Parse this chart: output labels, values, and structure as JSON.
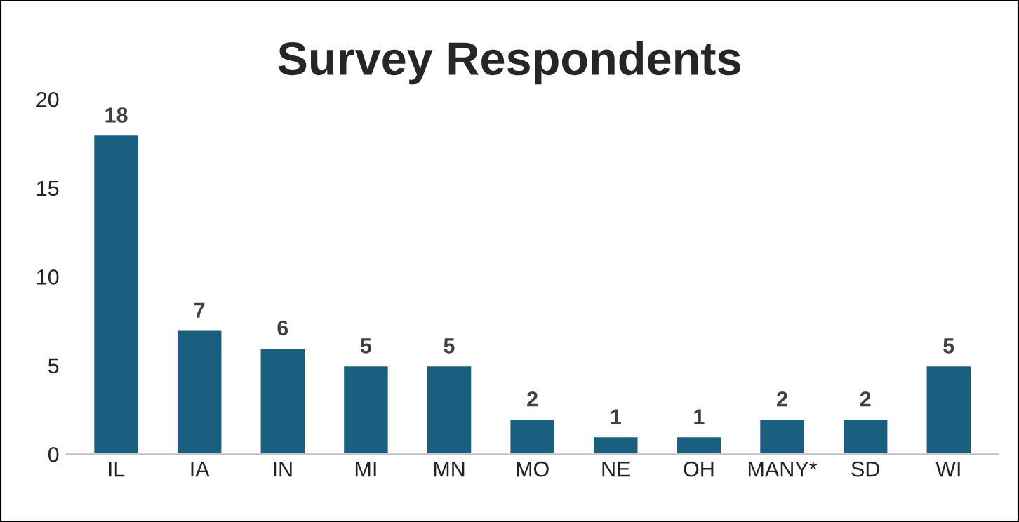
{
  "chart_data": {
    "type": "bar",
    "title": "Survey Respondents",
    "categories": [
      "IL",
      "IA",
      "IN",
      "MI",
      "MN",
      "MO",
      "NE",
      "OH",
      "MANY*",
      "SD",
      "WI"
    ],
    "values": [
      18,
      7,
      6,
      5,
      5,
      2,
      1,
      1,
      2,
      2,
      5
    ],
    "color": "#1a5f80",
    "ylim": [
      0,
      20
    ],
    "yticks": [
      0,
      5,
      10,
      15,
      20
    ],
    "grid": false,
    "data_labels": true
  }
}
